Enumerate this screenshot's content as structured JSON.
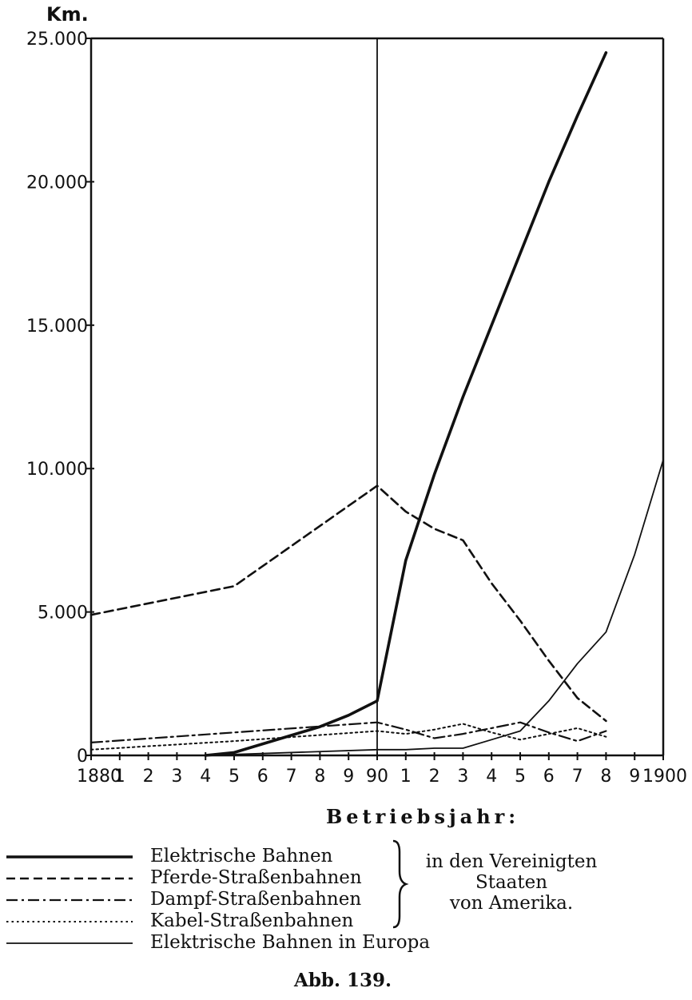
{
  "chart_data": {
    "type": "line",
    "ylabel": "Km.",
    "xlabel": "Betriebsjahr:",
    "caption": "Abb. 139.",
    "ylim": [
      0,
      25000
    ],
    "xlim": [
      1880,
      1900
    ],
    "y_ticks": [
      {
        "value": 0,
        "label": "0"
      },
      {
        "value": 5000,
        "label": "5.000"
      },
      {
        "value": 10000,
        "label": "10.000"
      },
      {
        "value": 15000,
        "label": "15.000"
      },
      {
        "value": 20000,
        "label": "20.000"
      },
      {
        "value": 25000,
        "label": "25.000"
      }
    ],
    "x_ticks": [
      {
        "value": 1880,
        "label": "1880"
      },
      {
        "value": 1881,
        "label": "1"
      },
      {
        "value": 1882,
        "label": "2"
      },
      {
        "value": 1883,
        "label": "3"
      },
      {
        "value": 1884,
        "label": "4"
      },
      {
        "value": 1885,
        "label": "5"
      },
      {
        "value": 1886,
        "label": "6"
      },
      {
        "value": 1887,
        "label": "7"
      },
      {
        "value": 1888,
        "label": "8"
      },
      {
        "value": 1889,
        "label": "9"
      },
      {
        "value": 1890,
        "label": "90"
      },
      {
        "value": 1891,
        "label": "1"
      },
      {
        "value": 1892,
        "label": "2"
      },
      {
        "value": 1893,
        "label": "3"
      },
      {
        "value": 1894,
        "label": "4"
      },
      {
        "value": 1895,
        "label": "5"
      },
      {
        "value": 1896,
        "label": "6"
      },
      {
        "value": 1897,
        "label": "7"
      },
      {
        "value": 1898,
        "label": "8"
      },
      {
        "value": 1899,
        "label": "9"
      },
      {
        "value": 1900,
        "label": "1900"
      }
    ],
    "reference_line_x": 1890,
    "series": [
      {
        "name": "Elektrische Bahnen",
        "style": "solid-thick",
        "x": [
          1884,
          1885,
          1886,
          1887,
          1888,
          1889,
          1890,
          1891,
          1892,
          1893,
          1894,
          1895,
          1896,
          1897,
          1898
        ],
        "y": [
          0,
          100,
          400,
          700,
          1000,
          1400,
          1900,
          6800,
          9800,
          12500,
          15000,
          17500,
          20000,
          22300,
          24500
        ]
      },
      {
        "name": "Pferde-Straßenbahnen",
        "style": "dashed",
        "x": [
          1880,
          1885,
          1890,
          1891,
          1892,
          1893,
          1894,
          1895,
          1896,
          1897,
          1898
        ],
        "y": [
          4900,
          5900,
          9400,
          8500,
          7900,
          7500,
          6000,
          4700,
          3300,
          2000,
          1200
        ]
      },
      {
        "name": "Dampf-Straßenbahnen",
        "style": "dash-dot",
        "x": [
          1880,
          1885,
          1890,
          1891,
          1892,
          1893,
          1894,
          1895,
          1896,
          1897,
          1898
        ],
        "y": [
          450,
          800,
          1150,
          900,
          600,
          750,
          950,
          1150,
          800,
          500,
          850
        ]
      },
      {
        "name": "Kabel-Straßenbahnen",
        "style": "dotted",
        "x": [
          1880,
          1885,
          1890,
          1891,
          1892,
          1893,
          1894,
          1895,
          1896,
          1897,
          1898
        ],
        "y": [
          200,
          500,
          850,
          750,
          900,
          1100,
          800,
          550,
          750,
          950,
          650
        ]
      },
      {
        "name": "Elektrische Bahnen in Europa",
        "style": "solid-thin",
        "x": [
          1880,
          1884,
          1890,
          1891,
          1892,
          1893,
          1894,
          1895,
          1896,
          1897,
          1898,
          1899,
          1900
        ],
        "y": [
          0,
          0,
          200,
          200,
          250,
          250,
          550,
          850,
          1900,
          3200,
          4300,
          7000,
          10300
        ]
      }
    ],
    "legend_group_label": [
      "in den Vereinigten",
      "Staaten",
      "von Amerika."
    ]
  }
}
